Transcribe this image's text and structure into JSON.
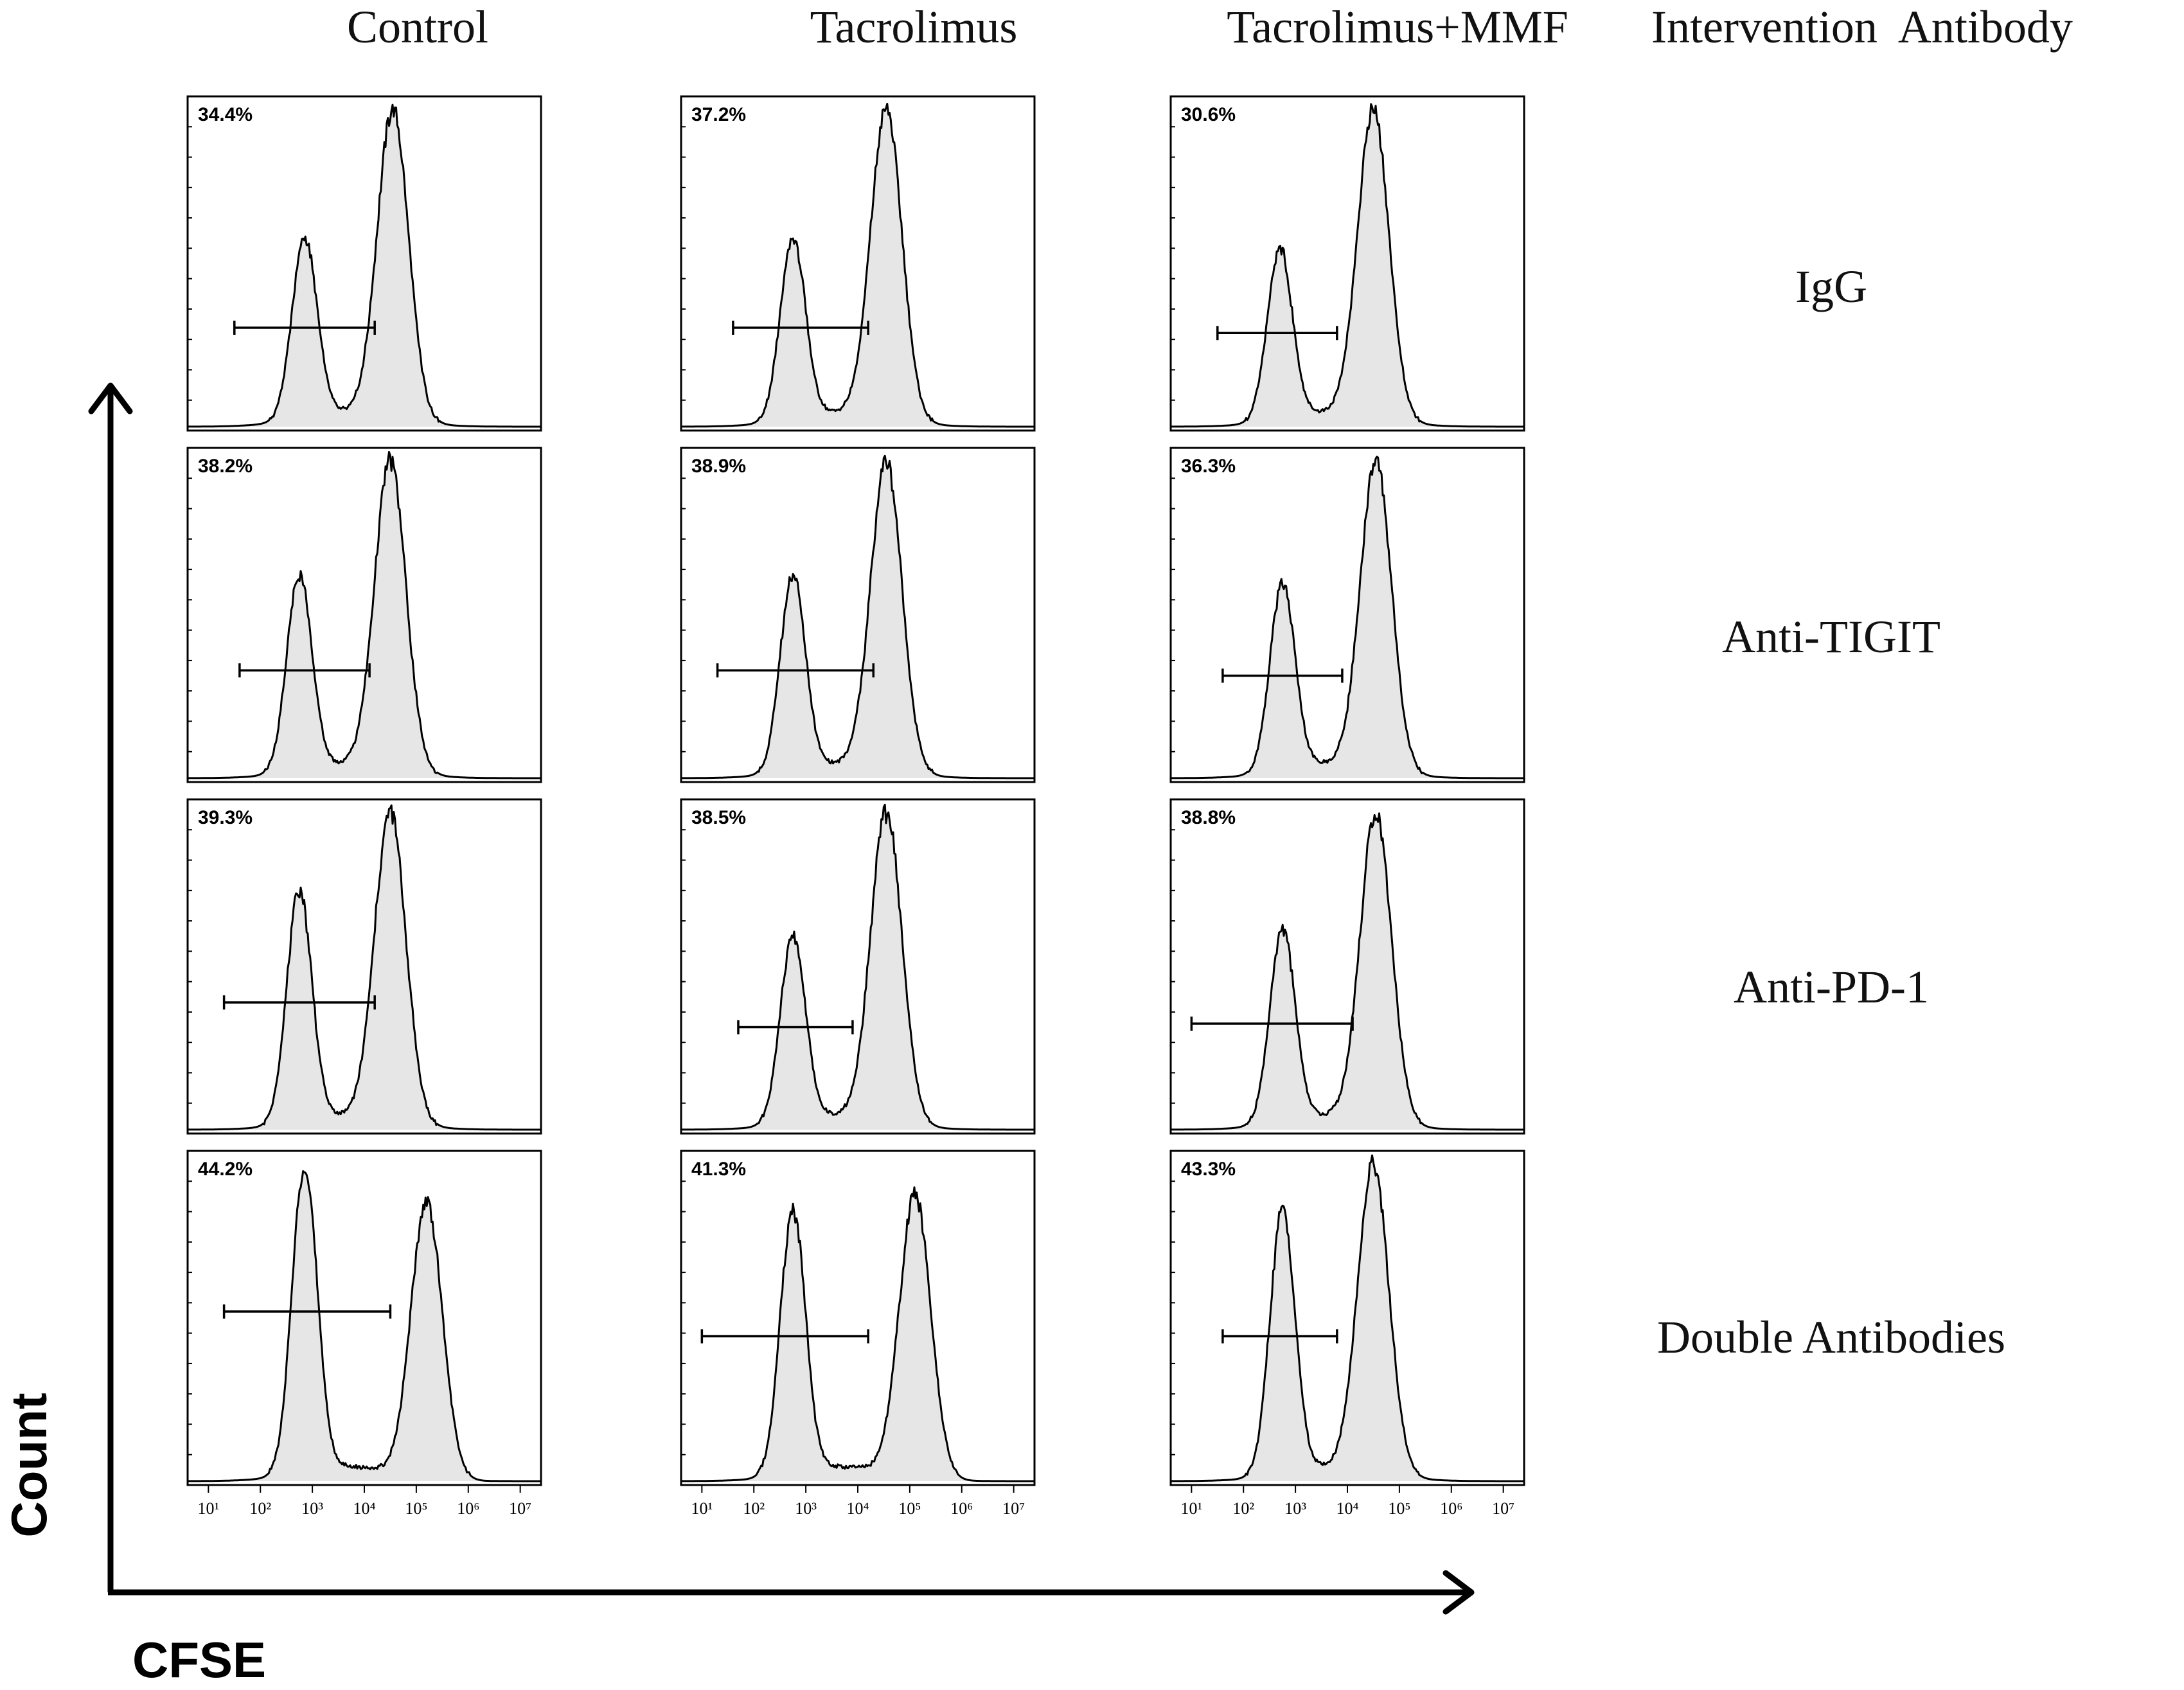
{
  "figure": {
    "column_headers": [
      "Control",
      "Tacrolimus",
      "Tacrolimus+MMF"
    ],
    "row_header_title": "Intervention  Antibody",
    "row_labels": [
      "IgG",
      "Anti-TIGIT",
      "Anti-PD-1",
      "Double Antibodies"
    ],
    "y_axis_label": "Count",
    "x_axis_label": "CFSE",
    "colors": {
      "fill": "#e6e6e6",
      "line": "#000000",
      "background": "#ffffff"
    }
  },
  "chart_data": {
    "type": "histogram-grid",
    "x_scale": "log",
    "xlim_exp": [
      0.6,
      7.4
    ],
    "x_tick_labels": [
      "10¹",
      "10²",
      "10³",
      "10⁴",
      "10⁵",
      "10⁶",
      "10⁷"
    ],
    "x_tick_exponents": [
      1,
      2,
      3,
      4,
      5,
      6,
      7
    ],
    "grid": false,
    "panels": [
      {
        "row": "IgG",
        "column": "Control",
        "gate_percent": "34.4%",
        "gate_range_exp": [
          1.5,
          4.2
        ],
        "peak1": {
          "center_exp": 2.85,
          "height": 0.56
        },
        "peak2": {
          "center_exp": 4.55,
          "height": 0.96
        }
      },
      {
        "row": "IgG",
        "column": "Tacrolimus",
        "gate_percent": "37.2%",
        "gate_range_exp": [
          1.6,
          4.2
        ],
        "peak1": {
          "center_exp": 2.75,
          "height": 0.56
        },
        "peak2": {
          "center_exp": 4.55,
          "height": 0.96
        }
      },
      {
        "row": "IgG",
        "column": "Tacrolimus+MMF",
        "gate_percent": "30.6%",
        "gate_range_exp": [
          1.5,
          3.8
        ],
        "peak1": {
          "center_exp": 2.7,
          "height": 0.53
        },
        "peak2": {
          "center_exp": 4.5,
          "height": 0.96
        }
      },
      {
        "row": "Anti-TIGIT",
        "column": "Control",
        "gate_percent": "38.2%",
        "gate_range_exp": [
          1.6,
          4.1
        ],
        "peak1": {
          "center_exp": 2.75,
          "height": 0.61
        },
        "peak2": {
          "center_exp": 4.5,
          "height": 0.96
        }
      },
      {
        "row": "Anti-TIGIT",
        "column": "Tacrolimus",
        "gate_percent": "38.9%",
        "gate_range_exp": [
          1.3,
          4.3
        ],
        "peak1": {
          "center_exp": 2.75,
          "height": 0.61
        },
        "peak2": {
          "center_exp": 4.55,
          "height": 0.96
        }
      },
      {
        "row": "Anti-TIGIT",
        "column": "Tacrolimus+MMF",
        "gate_percent": "36.3%",
        "gate_range_exp": [
          1.6,
          3.9
        ],
        "peak1": {
          "center_exp": 2.75,
          "height": 0.58
        },
        "peak2": {
          "center_exp": 4.55,
          "height": 0.96
        }
      },
      {
        "row": "Anti-PD-1",
        "column": "Control",
        "gate_percent": "39.3%",
        "gate_range_exp": [
          1.3,
          4.2
        ],
        "peak1": {
          "center_exp": 2.75,
          "height": 0.72
        },
        "peak2": {
          "center_exp": 4.5,
          "height": 0.96
        }
      },
      {
        "row": "Anti-PD-1",
        "column": "Tacrolimus",
        "gate_percent": "38.5%",
        "gate_range_exp": [
          1.7,
          3.9
        ],
        "peak1": {
          "center_exp": 2.75,
          "height": 0.58
        },
        "peak2": {
          "center_exp": 4.55,
          "height": 0.96
        }
      },
      {
        "row": "Anti-PD-1",
        "column": "Tacrolimus+MMF",
        "gate_percent": "38.8%",
        "gate_range_exp": [
          1.0,
          4.1
        ],
        "peak1": {
          "center_exp": 2.75,
          "height": 0.6
        },
        "peak2": {
          "center_exp": 4.55,
          "height": 0.96
        }
      },
      {
        "row": "Double Antibodies",
        "column": "Control",
        "gate_percent": "44.2%",
        "gate_range_exp": [
          1.3,
          4.5
        ],
        "peak1": {
          "center_exp": 2.85,
          "height": 0.96
        },
        "peak2": {
          "center_exp": 5.2,
          "height": 0.86
        }
      },
      {
        "row": "Double Antibodies",
        "column": "Tacrolimus",
        "gate_percent": "41.3%",
        "gate_range_exp": [
          1.0,
          4.2
        ],
        "peak1": {
          "center_exp": 2.75,
          "height": 0.82
        },
        "peak2": {
          "center_exp": 5.1,
          "height": 0.88
        }
      },
      {
        "row": "Double Antibodies",
        "column": "Tacrolimus+MMF",
        "gate_percent": "43.3%",
        "gate_range_exp": [
          1.6,
          3.8
        ],
        "peak1": {
          "center_exp": 2.75,
          "height": 0.82
        },
        "peak2": {
          "center_exp": 4.5,
          "height": 0.96
        }
      }
    ]
  }
}
